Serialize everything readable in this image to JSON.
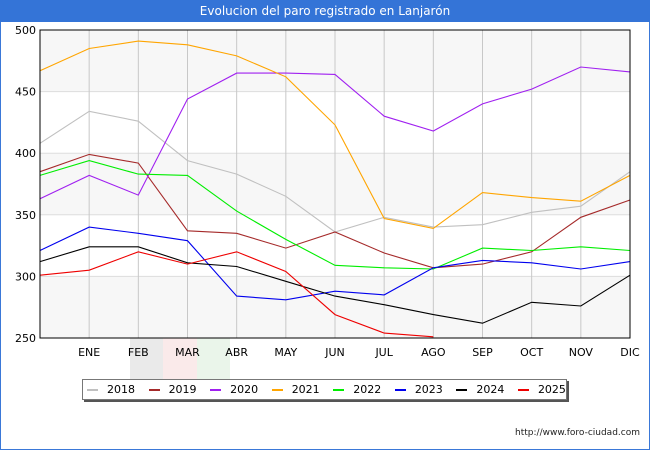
{
  "header": {
    "title": "Evolucion del paro registrado en Lanjarón"
  },
  "footer": {
    "source": "http://www.foro-ciudad.com"
  },
  "chart_data": {
    "type": "line",
    "title": "Evolucion del paro registrado en Lanjarón",
    "xlabel": "",
    "ylabel": "",
    "categories": [
      "",
      "ENE",
      "FEB",
      "MAR",
      "ABR",
      "MAY",
      "JUN",
      "JUL",
      "AGO",
      "SEP",
      "OCT",
      "NOV",
      "DIC"
    ],
    "ylim": [
      250,
      500
    ],
    "yticks": [
      250,
      300,
      350,
      400,
      450,
      500
    ],
    "grid": true,
    "legend_position": "bottom",
    "series": [
      {
        "name": "2018",
        "color": "#c0c0c0",
        "values": [
          408,
          434,
          426,
          394,
          383,
          365,
          336,
          348,
          340,
          342,
          352,
          357,
          385
        ]
      },
      {
        "name": "2019",
        "color": "#a52a2a",
        "values": [
          385,
          399,
          392,
          337,
          335,
          323,
          336,
          319,
          307,
          310,
          320,
          348,
          362
        ]
      },
      {
        "name": "2020",
        "color": "#a020f0",
        "values": [
          363,
          382,
          366,
          444,
          465,
          465,
          464,
          430,
          418,
          440,
          452,
          470,
          466
        ]
      },
      {
        "name": "2021",
        "color": "#ffa500",
        "values": [
          467,
          485,
          491,
          488,
          479,
          462,
          423,
          347,
          339,
          368,
          364,
          361,
          382
        ]
      },
      {
        "name": "2022",
        "color": "#00ee00",
        "values": [
          382,
          394,
          383,
          382,
          353,
          330,
          309,
          307,
          306,
          323,
          321,
          324,
          321
        ]
      },
      {
        "name": "2023",
        "color": "#0000ee",
        "values": [
          321,
          340,
          335,
          329,
          284,
          281,
          288,
          285,
          307,
          313,
          311,
          306,
          312
        ]
      },
      {
        "name": "2024",
        "color": "#000000",
        "values": [
          312,
          324,
          324,
          311,
          308,
          296,
          284,
          277,
          269,
          262,
          279,
          276,
          301
        ]
      },
      {
        "name": "2025",
        "color": "#ee0000",
        "values": [
          301,
          305,
          320,
          310,
          320,
          304,
          269,
          254,
          251
        ]
      }
    ]
  }
}
